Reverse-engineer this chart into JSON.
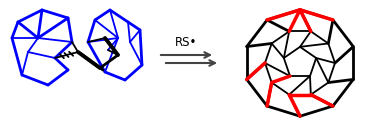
{
  "bg_color": "#ffffff",
  "black": "#000000",
  "blue": "#0000ff",
  "red": "#ff0000",
  "gray": "#444444",
  "label_text": "RS•",
  "figsize": [
    3.78,
    1.27
  ],
  "dpi": 100
}
